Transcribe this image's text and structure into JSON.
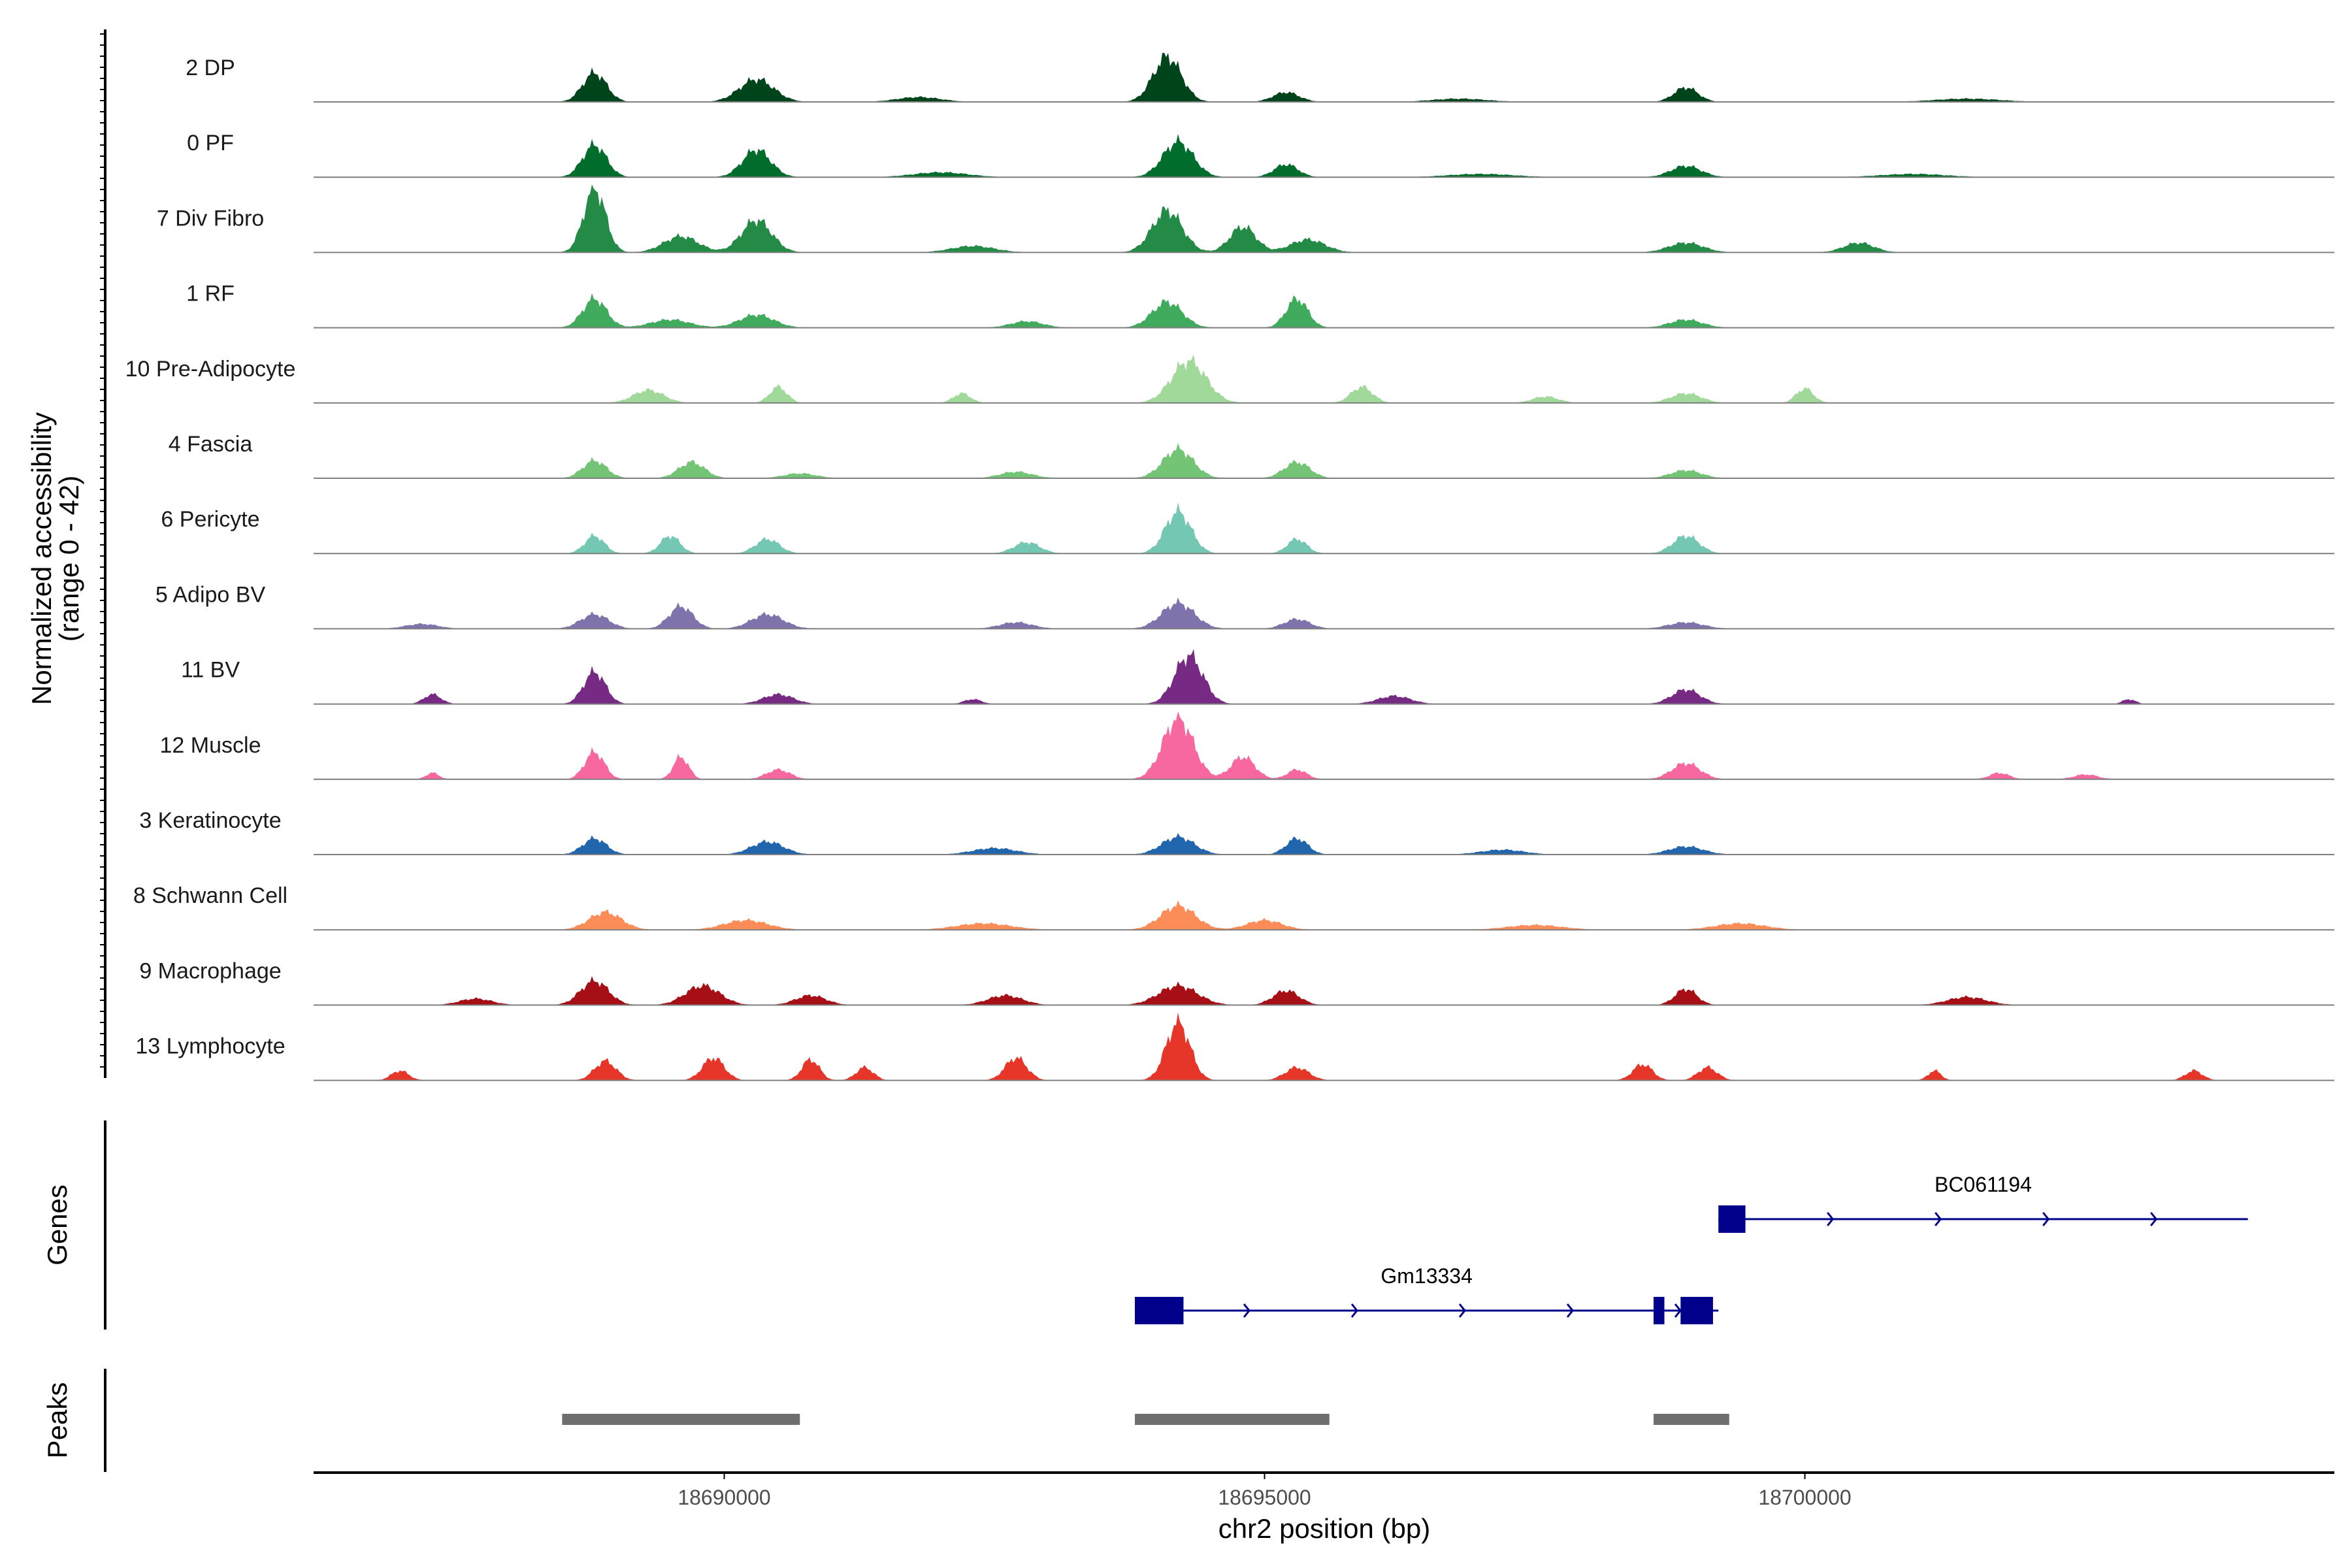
{
  "chart_data": {
    "type": "area",
    "title": "",
    "chromosome": "chr2",
    "xlabel": "chr2 position (bp)",
    "ylabel_line1": "Normalized accessibility",
    "ylabel_line2": "(range 0 - 42)",
    "xlim": [
      18686200,
      18704900
    ],
    "ylim": [
      0,
      42
    ],
    "xticks": [
      18690000,
      18695000,
      18700000
    ],
    "xtick_labels": [
      "18690000",
      "18695000",
      "18700000"
    ],
    "gene_panel_label": "Genes",
    "peak_panel_label": "Peaks",
    "series": [
      {
        "name": "2 DP",
        "color": "#00441b",
        "peaks": [
          [
            18688800,
            18,
            110
          ],
          [
            18690300,
            14,
            160
          ],
          [
            18694100,
            28,
            130
          ],
          [
            18695200,
            6,
            120
          ],
          [
            18698900,
            9,
            110
          ],
          [
            18691800,
            3,
            200
          ],
          [
            18696800,
            2,
            250
          ],
          [
            18701500,
            2,
            300
          ]
        ]
      },
      {
        "name": "0 PF",
        "color": "#006d2c",
        "peaks": [
          [
            18688800,
            20,
            110
          ],
          [
            18690300,
            17,
            130
          ],
          [
            18694200,
            22,
            140
          ],
          [
            18695200,
            8,
            110
          ],
          [
            18698900,
            7,
            140
          ],
          [
            18692000,
            3,
            250
          ],
          [
            18697000,
            2,
            300
          ],
          [
            18701000,
            2,
            300
          ]
        ]
      },
      {
        "name": "7 Div Fibro",
        "color": "#238b45",
        "peaks": [
          [
            18688800,
            40,
            100
          ],
          [
            18689600,
            10,
            160
          ],
          [
            18690300,
            20,
            140
          ],
          [
            18694100,
            26,
            140
          ],
          [
            18694800,
            16,
            120
          ],
          [
            18695400,
            8,
            160
          ],
          [
            18698900,
            6,
            160
          ],
          [
            18700500,
            6,
            140
          ],
          [
            18692300,
            4,
            200
          ]
        ]
      },
      {
        "name": "1 RF",
        "color": "#41ab5d",
        "peaks": [
          [
            18688800,
            18,
            110
          ],
          [
            18690300,
            8,
            160
          ],
          [
            18694100,
            16,
            140
          ],
          [
            18695300,
            18,
            100
          ],
          [
            18698900,
            5,
            150
          ],
          [
            18692800,
            4,
            150
          ],
          [
            18689500,
            5,
            180
          ]
        ]
      },
      {
        "name": "10 Pre-Adipocyte",
        "color": "#a1d99b",
        "peaks": [
          [
            18689300,
            8,
            140
          ],
          [
            18690500,
            10,
            80
          ],
          [
            18694300,
            26,
            160
          ],
          [
            18695900,
            10,
            100
          ],
          [
            18698900,
            6,
            140
          ],
          [
            18700000,
            9,
            80
          ],
          [
            18692200,
            6,
            80
          ],
          [
            18697600,
            4,
            120
          ]
        ]
      },
      {
        "name": "4 Fascia",
        "color": "#74c476",
        "peaks": [
          [
            18688800,
            11,
            110
          ],
          [
            18689700,
            10,
            120
          ],
          [
            18694200,
            18,
            140
          ],
          [
            18695300,
            10,
            120
          ],
          [
            18698900,
            5,
            140
          ],
          [
            18692700,
            4,
            150
          ],
          [
            18690700,
            3,
            150
          ]
        ]
      },
      {
        "name": "6 Pericyte",
        "color": "#74c7b2",
        "peaks": [
          [
            18688800,
            11,
            90
          ],
          [
            18689500,
            11,
            90
          ],
          [
            18690400,
            9,
            110
          ],
          [
            18694200,
            26,
            120
          ],
          [
            18695300,
            9,
            90
          ],
          [
            18698900,
            11,
            120
          ],
          [
            18692800,
            7,
            120
          ]
        ]
      },
      {
        "name": "5 Adipo BV",
        "color": "#8073ac",
        "peaks": [
          [
            18688800,
            9,
            130
          ],
          [
            18689600,
            14,
            110
          ],
          [
            18690400,
            9,
            150
          ],
          [
            18694200,
            16,
            150
          ],
          [
            18695300,
            6,
            120
          ],
          [
            18698900,
            4,
            160
          ],
          [
            18692700,
            4,
            150
          ],
          [
            18687200,
            3,
            150
          ]
        ]
      },
      {
        "name": "11 BV",
        "color": "#762a83",
        "peaks": [
          [
            18688800,
            20,
            100
          ],
          [
            18690500,
            6,
            140
          ],
          [
            18694300,
            30,
            130
          ],
          [
            18698900,
            9,
            130
          ],
          [
            18687300,
            6,
            80
          ],
          [
            18696200,
            5,
            150
          ],
          [
            18692300,
            3,
            80
          ],
          [
            18703000,
            3,
            60
          ]
        ]
      },
      {
        "name": "12 Muscle",
        "color": "#f768a1",
        "peaks": [
          [
            18688800,
            17,
            90
          ],
          [
            18689600,
            14,
            70
          ],
          [
            18690500,
            6,
            110
          ],
          [
            18694200,
            38,
            140
          ],
          [
            18694800,
            14,
            110
          ],
          [
            18695300,
            6,
            90
          ],
          [
            18698900,
            10,
            130
          ],
          [
            18687300,
            4,
            60
          ],
          [
            18701800,
            4,
            90
          ],
          [
            18702600,
            3,
            110
          ]
        ]
      },
      {
        "name": "3 Keratinocyte",
        "color": "#2166ac",
        "peaks": [
          [
            18688800,
            10,
            110
          ],
          [
            18690400,
            8,
            150
          ],
          [
            18694200,
            11,
            150
          ],
          [
            18695300,
            10,
            100
          ],
          [
            18698900,
            5,
            160
          ],
          [
            18692500,
            4,
            200
          ],
          [
            18697200,
            3,
            200
          ]
        ]
      },
      {
        "name": "8 Schwann Cell",
        "color": "#fc8d59",
        "peaks": [
          [
            18688900,
            11,
            150
          ],
          [
            18690200,
            6,
            200
          ],
          [
            18694200,
            15,
            160
          ],
          [
            18695000,
            6,
            160
          ],
          [
            18699400,
            4,
            230
          ],
          [
            18692400,
            4,
            250
          ],
          [
            18697500,
            3,
            250
          ]
        ]
      },
      {
        "name": "9 Macrophage",
        "color": "#a50f15",
        "peaks": [
          [
            18688800,
            15,
            130
          ],
          [
            18689800,
            12,
            160
          ],
          [
            18690800,
            6,
            140
          ],
          [
            18694200,
            12,
            180
          ],
          [
            18695200,
            9,
            120
          ],
          [
            18698900,
            10,
            100
          ],
          [
            18692600,
            6,
            160
          ],
          [
            18687700,
            4,
            150
          ],
          [
            18701500,
            5,
            180
          ]
        ]
      },
      {
        "name": "13 Lymphocyte",
        "color": "#e63629",
        "peaks": [
          [
            18688900,
            12,
            100
          ],
          [
            18689900,
            14,
            100
          ],
          [
            18690800,
            13,
            80
          ],
          [
            18692700,
            14,
            100
          ],
          [
            18694200,
            36,
            110
          ],
          [
            18695300,
            8,
            110
          ],
          [
            18698500,
            10,
            90
          ],
          [
            18699100,
            8,
            90
          ],
          [
            18687000,
            6,
            80
          ],
          [
            18691300,
            8,
            80
          ],
          [
            18701200,
            6,
            60
          ],
          [
            18703600,
            6,
            80
          ]
        ]
      }
    ],
    "genes": [
      {
        "name": "Gm13334",
        "start": 18693800,
        "end": 18699200,
        "strand": "+",
        "exons": [
          [
            18693800,
            18694250
          ],
          [
            18698600,
            18698700
          ],
          [
            18698850,
            18699150
          ]
        ],
        "row": 2
      },
      {
        "name": "BC061194",
        "start": 18699200,
        "end": 18704100,
        "strand": "+",
        "exons": [
          [
            18699200,
            18699450
          ]
        ],
        "row": 1
      }
    ],
    "peaks": [
      {
        "start": 18688500,
        "end": 18690700
      },
      {
        "start": 18693800,
        "end": 18695600
      },
      {
        "start": 18698600,
        "end": 18699300
      }
    ]
  }
}
